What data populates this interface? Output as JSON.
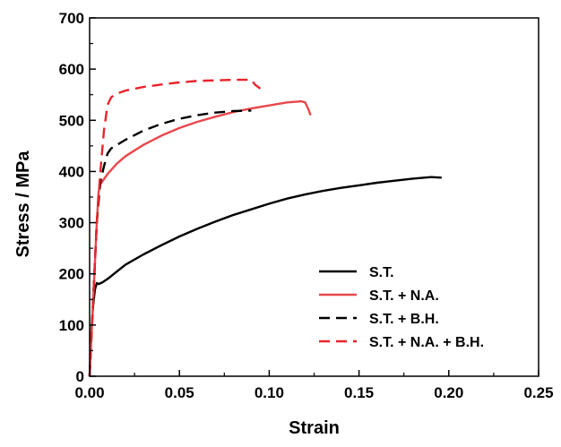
{
  "chart_data": {
    "type": "line",
    "title": "",
    "xlabel": "Strain",
    "ylabel": "Stress / MPa",
    "xlim": [
      0,
      0.25
    ],
    "ylim": [
      0,
      700
    ],
    "x_ticks": [
      0,
      0.05,
      0.1,
      0.15,
      0.2,
      0.25
    ],
    "x_tick_labels": [
      "0.00",
      "0.05",
      "0.10",
      "0.15",
      "0.20",
      "0.25"
    ],
    "y_ticks": [
      0,
      100,
      200,
      300,
      400,
      500,
      600,
      700
    ],
    "y_tick_labels": [
      "0",
      "100",
      "200",
      "300",
      "400",
      "500",
      "600",
      "700"
    ],
    "grid": false,
    "legend_position": "bottom-right",
    "series": [
      {
        "name": "S.T.",
        "color": "#000000",
        "dash": "solid",
        "x": [
          0,
          0.001,
          0.002,
          0.003,
          0.004,
          0.005,
          0.007,
          0.01,
          0.02,
          0.03,
          0.04,
          0.05,
          0.06,
          0.07,
          0.08,
          0.09,
          0.1,
          0.11,
          0.12,
          0.13,
          0.14,
          0.15,
          0.16,
          0.17,
          0.18,
          0.19,
          0.196
        ],
        "y": [
          0,
          90,
          140,
          170,
          182,
          180,
          183,
          190,
          218,
          238,
          256,
          273,
          288,
          302,
          315,
          326,
          337,
          347,
          355,
          362,
          368,
          373,
          378,
          382,
          386,
          389,
          388
        ]
      },
      {
        "name": "S.T. + N.A.",
        "color": "#e8474c",
        "dash": "solid",
        "x": [
          0,
          0.002,
          0.004,
          0.005,
          0.006,
          0.008,
          0.01,
          0.015,
          0.02,
          0.03,
          0.04,
          0.05,
          0.06,
          0.07,
          0.08,
          0.09,
          0.1,
          0.11,
          0.118,
          0.12,
          0.122,
          0.123
        ],
        "y": [
          0,
          150,
          300,
          360,
          375,
          385,
          395,
          415,
          430,
          452,
          470,
          485,
          497,
          507,
          516,
          523,
          529,
          535,
          537,
          535,
          520,
          510
        ]
      },
      {
        "name": "S.T. + B.H.",
        "color": "#000000",
        "dash": "dashed",
        "x": [
          0,
          0.002,
          0.004,
          0.006,
          0.008,
          0.01,
          0.012,
          0.02,
          0.03,
          0.04,
          0.05,
          0.06,
          0.07,
          0.08,
          0.09
        ],
        "y": [
          0,
          150,
          300,
          380,
          410,
          435,
          445,
          462,
          480,
          493,
          503,
          510,
          515,
          518,
          519
        ]
      },
      {
        "name": "S.T. + N.A. + B.H.",
        "color": "#e8242b",
        "dash": "dashed",
        "x": [
          0,
          0.002,
          0.004,
          0.006,
          0.008,
          0.01,
          0.012,
          0.015,
          0.02,
          0.03,
          0.04,
          0.05,
          0.06,
          0.07,
          0.08,
          0.09,
          0.092,
          0.095
        ],
        "y": [
          0,
          150,
          300,
          400,
          480,
          530,
          545,
          552,
          558,
          565,
          570,
          574,
          577,
          578,
          579,
          579,
          570,
          562
        ]
      }
    ]
  }
}
